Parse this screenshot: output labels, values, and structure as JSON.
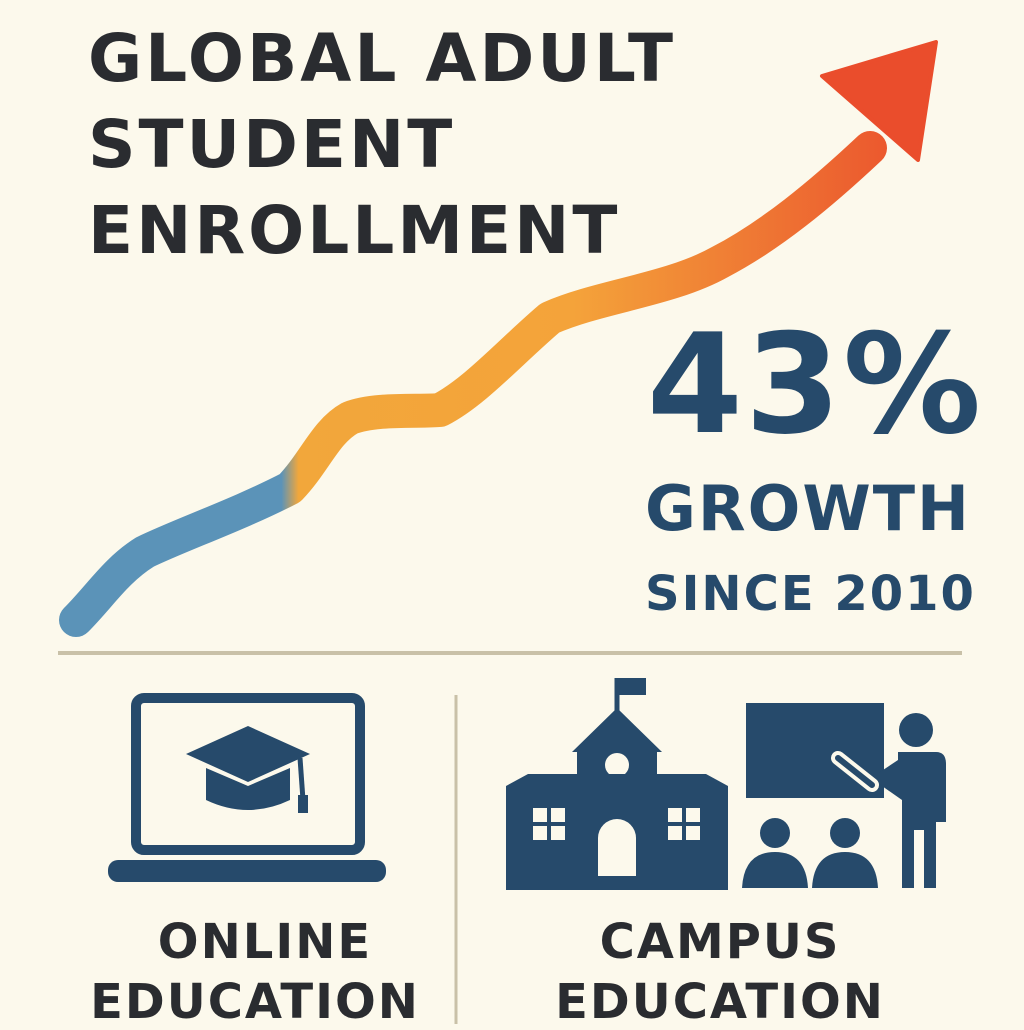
{
  "title": {
    "line1": "GLOBAL ADULT",
    "line2": "STUDENT",
    "line3": "ENROLLMENT"
  },
  "stat": {
    "value": "43%",
    "label": "GROWTH",
    "sub": "SINCE 2010"
  },
  "sections": {
    "online": {
      "line1": "ONLINE",
      "line2": "EDUCATION",
      "icon": "laptop-graduation-cap-icon"
    },
    "campus": {
      "line1": "CAMPUS",
      "line2": "EDUCATION",
      "icon": "school-building-teacher-icon"
    }
  },
  "colors": {
    "background": "#fcf9ec",
    "title_text": "#2a2c30",
    "stat_text": "#264a6b",
    "icon_fill": "#264a6b",
    "arrow_start": "#5b93b8",
    "arrow_mid": "#f2a73b",
    "arrow_end": "#ea4d2c",
    "divider": "#c9c1a8"
  }
}
